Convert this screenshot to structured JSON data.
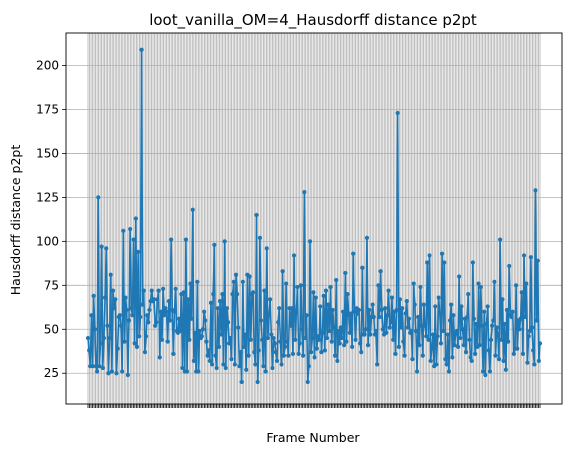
{
  "chart_data": {
    "type": "line",
    "title": "loot_vanilla_OM=4_Hausdorff distance p2pt",
    "xlabel": "Frame Number",
    "ylabel": "Hausdorff distance p2pt",
    "grid": true,
    "marker": "circle",
    "colors": {
      "series": "#1f77b4"
    },
    "x_tick_count": 300,
    "ylim": [
      7.5,
      218.5
    ],
    "yticks": [
      25,
      50,
      75,
      100,
      125,
      150,
      175,
      200
    ],
    "series": [
      {
        "values": [
          45,
          38,
          29,
          58,
          29,
          69,
          50,
          29,
          26,
          125,
          29,
          42,
          97,
          28,
          45,
          68,
          96,
          52,
          25,
          45,
          81,
          26,
          72,
          62,
          67,
          25,
          39,
          57,
          58,
          52,
          26,
          106,
          43,
          68,
          61,
          24,
          55,
          107,
          62,
          58,
          101,
          42,
          113,
          40,
          94,
          46,
          57,
          209,
          64,
          72,
          37,
          46,
          58,
          54,
          61,
          66,
          72,
          66,
          67,
          52,
          54,
          67,
          72,
          34,
          60,
          44,
          73,
          58,
          62,
          60,
          43,
          66,
          55,
          101,
          61,
          36,
          60,
          73,
          49,
          48,
          56,
          49,
          70,
          28,
          71,
          26,
          101,
          26,
          67,
          44,
          76,
          56,
          118,
          32,
          48,
          26,
          77,
          26,
          49,
          45,
          46,
          50,
          60,
          55,
          43,
          35,
          38,
          32,
          65,
          30,
          70,
          98,
          35,
          28,
          62,
          40,
          66,
          47,
          70,
          30,
          100,
          28,
          62,
          54,
          42,
          45,
          33,
          70,
          77,
          30,
          81,
          70,
          51,
          29,
          37,
          20,
          77,
          40,
          47,
          27,
          81,
          35,
          80,
          44,
          70,
          71,
          37,
          30,
          115,
          20,
          38,
          102,
          55,
          44,
          29,
          72,
          26,
          96,
          45,
          58,
          67,
          47,
          28,
          45,
          42,
          37,
          32,
          54,
          62,
          43,
          30,
          83,
          35,
          40,
          76,
          43,
          35,
          62,
          52,
          62,
          36,
          92,
          44,
          60,
          74,
          36,
          42,
          75,
          50,
          35,
          128,
          45,
          58,
          20,
          29,
          100,
          37,
          45,
          71,
          34,
          68,
          39,
          46,
          44,
          63,
          37,
          48,
          69,
          38,
          72,
          45,
          64,
          49,
          74,
          43,
          61,
          51,
          35,
          78,
          32,
          49,
          42,
          51,
          45,
          60,
          41,
          82,
          43,
          70,
          58,
          48,
          59,
          40,
          93,
          60,
          44,
          62,
          59,
          61,
          42,
          37,
          85,
          47,
          47,
          50,
          102,
          41,
          61,
          47,
          57,
          64,
          57,
          47,
          49,
          30,
          75,
          57,
          83,
          61,
          50,
          47,
          62,
          48,
          58,
          72,
          51,
          54,
          68,
          44,
          60,
          36,
          61,
          173,
          40,
          67,
          51,
          62,
          43,
          35,
          59,
          66,
          51,
          56,
          48,
          49,
          33,
          76,
          64,
          49,
          26,
          57,
          41,
          74,
          52,
          35,
          64,
          52,
          46,
          88,
          44,
          92,
          32,
          39,
          47,
          29,
          63,
          30,
          46,
          68,
          59,
          42,
          93,
          49,
          88,
          33,
          30,
          47,
          26,
          55,
          64,
          34,
          58,
          41,
          48,
          49,
          40,
          80,
          45,
          63,
          50,
          41,
          56,
          37,
          57,
          70,
          44,
          34,
          32,
          88,
          56,
          36,
          53,
          40,
          76,
          41,
          74,
          52,
          26,
          60,
          24,
          53,
          63,
          38,
          26,
          44,
          52,
          55,
          77,
          35,
          51,
          47,
          33,
          101,
          44,
          67,
          32,
          53,
          27,
          61,
          43,
          86,
          58,
          57,
          60,
          36,
          39,
          75,
          39,
          55,
          50,
          56,
          71,
          36,
          92,
          57,
          76,
          31,
          46,
          49,
          91,
          51,
          38,
          30,
          129,
          55,
          89,
          32,
          42
        ]
      }
    ]
  }
}
